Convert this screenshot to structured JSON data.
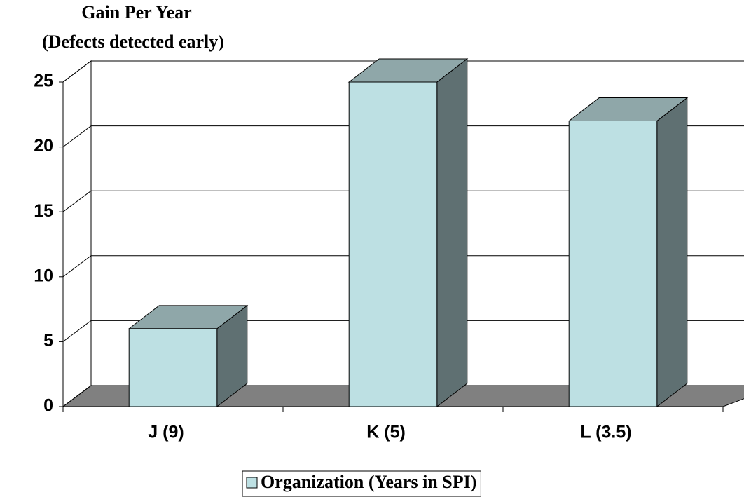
{
  "chart_data": {
    "type": "bar",
    "title": "Gain Per Year",
    "subtitle": "(Defects detected early)",
    "categories": [
      "J (9)",
      "K (5)",
      "L (3.5)"
    ],
    "series": [
      {
        "name": "Organization (Years in SPI)",
        "color": "#bde0e3",
        "values": [
          6,
          25,
          22
        ]
      }
    ],
    "ylim": [
      0,
      25
    ],
    "yticks": [
      0,
      5,
      10,
      15,
      20,
      25
    ],
    "grid": true,
    "legend": "bottom"
  }
}
